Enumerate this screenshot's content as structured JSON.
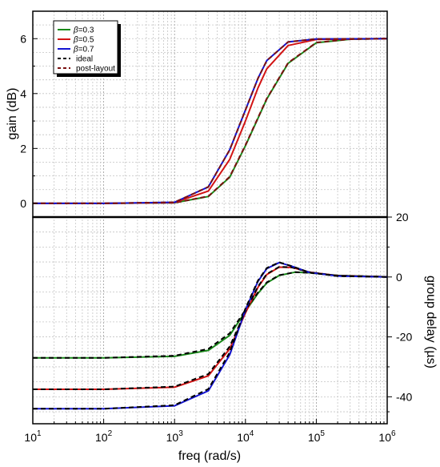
{
  "chart_data": {
    "type": "line",
    "x_scale": "log",
    "xlabel": "freq (rad/s)",
    "xlim": [
      10,
      1000000
    ],
    "x_ticks": [
      {
        "value": 10,
        "base": "10",
        "exp": "1"
      },
      {
        "value": 100,
        "base": "10",
        "exp": "2"
      },
      {
        "value": 1000,
        "base": "10",
        "exp": "3"
      },
      {
        "value": 10000,
        "base": "10",
        "exp": "4"
      },
      {
        "value": 100000,
        "base": "10",
        "exp": "5"
      },
      {
        "value": 1000000,
        "base": "10",
        "exp": "6"
      }
    ],
    "grid": true,
    "legend_position": "top-left",
    "legend": [
      {
        "label_prefix": "β",
        "label_suffix": "=0.3",
        "color": "#1a8a1a",
        "dash": "solid"
      },
      {
        "label_prefix": "β",
        "label_suffix": "=0.5",
        "color": "#d21414",
        "dash": "solid"
      },
      {
        "label_prefix": "β",
        "label_suffix": "=0.7",
        "color": "#1414d2",
        "dash": "solid"
      },
      {
        "label_prefix": "",
        "label_suffix": "ideal",
        "color": "#000000",
        "dash": "dashed"
      },
      {
        "label_prefix": "",
        "label_suffix": "post-layout",
        "color": "#7a1010",
        "dash": "dashed"
      }
    ],
    "panels": [
      {
        "id": "gain",
        "ylabel": "gain (dB)",
        "ylim": [
          -0.5,
          7
        ],
        "y_ticks": [
          0,
          2,
          4,
          6
        ],
        "series": [
          {
            "beta": 0.3,
            "color": "#1a8a1a",
            "dash": "solid",
            "points": [
              [
                10,
                0
              ],
              [
                100,
                0
              ],
              [
                1000,
                0.02
              ],
              [
                3000,
                0.25
              ],
              [
                6000,
                0.95
              ],
              [
                10000,
                2.1
              ],
              [
                20000,
                3.8
              ],
              [
                40000,
                5.1
              ],
              [
                100000,
                5.85
              ],
              [
                300000,
                5.98
              ],
              [
                1000000,
                6.0
              ]
            ]
          },
          {
            "beta": 0.3,
            "color": "#7a1010",
            "dash": "dashed",
            "points": [
              [
                10,
                0
              ],
              [
                100,
                0
              ],
              [
                1000,
                0.02
              ],
              [
                3000,
                0.26
              ],
              [
                6000,
                0.97
              ],
              [
                10000,
                2.12
              ],
              [
                20000,
                3.82
              ],
              [
                40000,
                5.12
              ],
              [
                100000,
                5.86
              ],
              [
                300000,
                5.98
              ],
              [
                1000000,
                6.0
              ]
            ]
          },
          {
            "beta": 0.5,
            "color": "#d21414",
            "dash": "solid",
            "points": [
              [
                10,
                0
              ],
              [
                100,
                0
              ],
              [
                1000,
                0.03
              ],
              [
                3000,
                0.45
              ],
              [
                6000,
                1.6
              ],
              [
                10000,
                3.0
              ],
              [
                15000,
                4.2
              ],
              [
                20000,
                4.9
              ],
              [
                40000,
                5.75
              ],
              [
                100000,
                5.97
              ],
              [
                1000000,
                6.0
              ]
            ]
          },
          {
            "beta": 0.7,
            "color": "#1414d2",
            "dash": "solid",
            "points": [
              [
                10,
                0
              ],
              [
                100,
                0
              ],
              [
                1000,
                0.04
              ],
              [
                3000,
                0.6
              ],
              [
                6000,
                1.95
              ],
              [
                10000,
                3.4
              ],
              [
                15000,
                4.55
              ],
              [
                20000,
                5.2
              ],
              [
                40000,
                5.88
              ],
              [
                100000,
                5.99
              ],
              [
                1000000,
                6.0
              ]
            ]
          },
          {
            "beta": 0.7,
            "color": "#7a1010",
            "dash": "dashed",
            "points": [
              [
                10,
                0
              ],
              [
                100,
                0
              ],
              [
                1000,
                0.04
              ],
              [
                3000,
                0.6
              ],
              [
                6000,
                1.95
              ],
              [
                10000,
                3.4
              ],
              [
                15000,
                4.55
              ],
              [
                20000,
                5.2
              ],
              [
                40000,
                5.88
              ],
              [
                100000,
                5.99
              ],
              [
                1000000,
                6.0
              ]
            ]
          }
        ]
      },
      {
        "id": "delay",
        "ylabel": "group delay (µs)",
        "ylim": [
          -49,
          20
        ],
        "y_ticks": [
          20,
          0,
          -20,
          -40
        ],
        "series": [
          {
            "beta": 0.3,
            "color": "#1a8a1a",
            "dash": "solid",
            "points": [
              [
                10,
                -27
              ],
              [
                100,
                -27
              ],
              [
                1000,
                -26.5
              ],
              [
                3000,
                -24.5
              ],
              [
                6000,
                -19.5
              ],
              [
                10000,
                -11.5
              ],
              [
                15000,
                -5.5
              ],
              [
                20000,
                -2
              ],
              [
                30000,
                0.5
              ],
              [
                50000,
                1.6
              ],
              [
                80000,
                1.4
              ],
              [
                200000,
                0.5
              ],
              [
                1000000,
                0.05
              ]
            ]
          },
          {
            "beta": 0.3,
            "color": "#000000",
            "dash": "dashed",
            "points": [
              [
                10,
                -27
              ],
              [
                100,
                -27
              ],
              [
                1000,
                -26.3
              ],
              [
                3000,
                -24.0
              ],
              [
                6000,
                -18.8
              ],
              [
                10000,
                -11.0
              ],
              [
                15000,
                -5.2
              ],
              [
                20000,
                -1.8
              ],
              [
                30000,
                0.6
              ],
              [
                50000,
                1.6
              ],
              [
                80000,
                1.4
              ],
              [
                200000,
                0.5
              ],
              [
                1000000,
                0.05
              ]
            ]
          },
          {
            "beta": 0.5,
            "color": "#d21414",
            "dash": "solid",
            "points": [
              [
                10,
                -37.5
              ],
              [
                100,
                -37.5
              ],
              [
                1000,
                -36.8
              ],
              [
                3000,
                -33
              ],
              [
                6000,
                -24
              ],
              [
                10000,
                -12
              ],
              [
                15000,
                -3.5
              ],
              [
                20000,
                0.8
              ],
              [
                30000,
                3.3
              ],
              [
                45000,
                3.2
              ],
              [
                80000,
                1.6
              ],
              [
                200000,
                0.4
              ],
              [
                1000000,
                0.03
              ]
            ]
          },
          {
            "beta": 0.5,
            "color": "#000000",
            "dash": "dashed",
            "points": [
              [
                10,
                -37.5
              ],
              [
                100,
                -37.5
              ],
              [
                1000,
                -36.6
              ],
              [
                3000,
                -32.4
              ],
              [
                6000,
                -23.2
              ],
              [
                10000,
                -11.5
              ],
              [
                15000,
                -3.2
              ],
              [
                20000,
                1.0
              ],
              [
                30000,
                3.4
              ],
              [
                45000,
                3.2
              ],
              [
                80000,
                1.6
              ],
              [
                200000,
                0.4
              ],
              [
                1000000,
                0.03
              ]
            ]
          },
          {
            "beta": 0.7,
            "color": "#1414d2",
            "dash": "solid",
            "points": [
              [
                10,
                -44
              ],
              [
                100,
                -44
              ],
              [
                1000,
                -43
              ],
              [
                3000,
                -38
              ],
              [
                6000,
                -26
              ],
              [
                10000,
                -11
              ],
              [
                15000,
                -1.5
              ],
              [
                20000,
                2.8
              ],
              [
                30000,
                4.8
              ],
              [
                45000,
                3.6
              ],
              [
                80000,
                1.5
              ],
              [
                200000,
                0.3
              ],
              [
                1000000,
                0.02
              ]
            ]
          },
          {
            "beta": 0.7,
            "color": "#000000",
            "dash": "dashed",
            "points": [
              [
                10,
                -44
              ],
              [
                100,
                -44
              ],
              [
                1000,
                -42.8
              ],
              [
                3000,
                -37.4
              ],
              [
                6000,
                -25.2
              ],
              [
                10000,
                -10.5
              ],
              [
                15000,
                -1.2
              ],
              [
                20000,
                3.0
              ],
              [
                30000,
                4.9
              ],
              [
                45000,
                3.6
              ],
              [
                80000,
                1.5
              ],
              [
                200000,
                0.3
              ],
              [
                1000000,
                0.02
              ]
            ]
          }
        ]
      }
    ]
  }
}
